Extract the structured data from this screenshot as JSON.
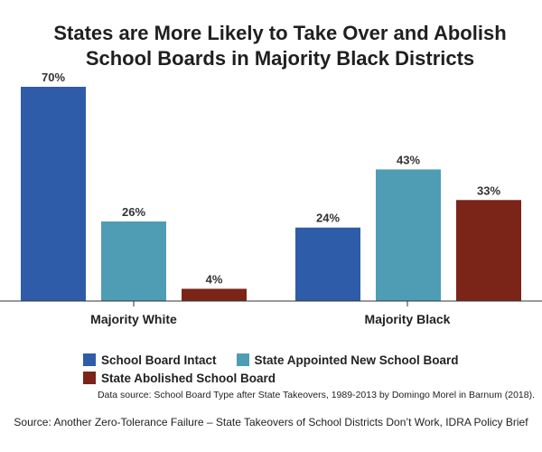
{
  "chart_data": {
    "type": "bar",
    "title_lines": [
      "States are More Likely to Take Over and Abolish",
      "School Boards in Majority Black Districts"
    ],
    "categories": [
      "Majority White",
      "Majority Black"
    ],
    "series": [
      {
        "name": "School Board Intact",
        "values": [
          70,
          24
        ],
        "labels": [
          "70%",
          "24%"
        ],
        "color": "#2E5CA8"
      },
      {
        "name": "State Appointed New School Board",
        "values": [
          26,
          43
        ],
        "labels": [
          "26%",
          "43%"
        ],
        "color": "#4E9DB5"
      },
      {
        "name": "State Abolished School Board",
        "values": [
          4,
          33
        ],
        "labels": [
          "4%",
          "33%"
        ],
        "color": "#7B2418"
      }
    ],
    "ylim": [
      0,
      70
    ],
    "grid": false,
    "legend_position": "bottom"
  },
  "footnotes": {
    "data_source": "Data source: School Board Type after State Takeovers, 1989-2013 by Domingo Morel in Barnum (2018).",
    "source": "Source: Another Zero-Tolerance Failure – State Takeovers of School Districts Don’t Work, IDRA Policy Brief"
  }
}
